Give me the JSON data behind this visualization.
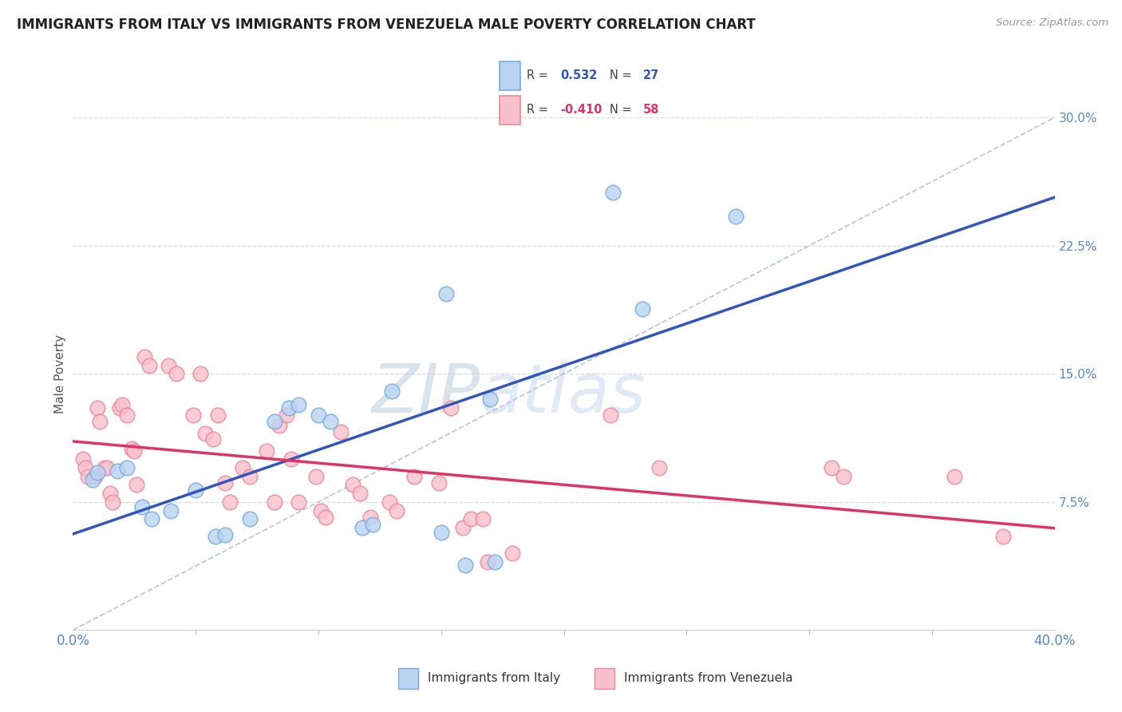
{
  "title": "IMMIGRANTS FROM ITALY VS IMMIGRANTS FROM VENEZUELA MALE POVERTY CORRELATION CHART",
  "source": "Source: ZipAtlas.com",
  "xlabel_italy": "Immigrants from Italy",
  "xlabel_venezuela": "Immigrants from Venezuela",
  "ylabel": "Male Poverty",
  "xlim": [
    0.0,
    0.4
  ],
  "ylim": [
    0.0,
    0.3
  ],
  "xtick_left_label": "0.0%",
  "xtick_right_label": "40.0%",
  "yticks_right": [
    0.075,
    0.15,
    0.225,
    0.3
  ],
  "ytick_labels_right": [
    "7.5%",
    "15.0%",
    "22.5%",
    "30.0%"
  ],
  "italy_R": "0.532",
  "italy_N": "27",
  "venezuela_R": "-0.410",
  "venezuela_N": "58",
  "italy_face_color": "#B8D4F0",
  "italy_edge_color": "#7AAADE",
  "venezuela_face_color": "#F8C0CC",
  "venezuela_edge_color": "#EE8899",
  "italy_line_color": "#3355BB",
  "venezuela_line_color": "#DD3366",
  "ref_line_color": "#C0C8D8",
  "grid_color": "#D8DCE8",
  "background_color": "#FFFFFF",
  "watermark_text": "ZIPatlas",
  "watermark_color": "#C8D8EE",
  "italy_x": [
    0.008,
    0.01,
    0.018,
    0.022,
    0.028,
    0.032,
    0.04,
    0.05,
    0.058,
    0.062,
    0.072,
    0.082,
    0.088,
    0.092,
    0.1,
    0.105,
    0.118,
    0.122,
    0.13,
    0.152,
    0.17,
    0.172,
    0.22,
    0.232,
    0.27,
    0.15,
    0.16
  ],
  "italy_y": [
    0.088,
    0.092,
    0.093,
    0.095,
    0.072,
    0.065,
    0.07,
    0.082,
    0.055,
    0.056,
    0.065,
    0.122,
    0.13,
    0.132,
    0.126,
    0.122,
    0.06,
    0.062,
    0.14,
    0.197,
    0.135,
    0.04,
    0.256,
    0.188,
    0.242,
    0.057,
    0.038
  ],
  "venezuela_x": [
    0.004,
    0.005,
    0.006,
    0.009,
    0.01,
    0.011,
    0.013,
    0.014,
    0.015,
    0.016,
    0.019,
    0.02,
    0.022,
    0.024,
    0.025,
    0.026,
    0.029,
    0.031,
    0.039,
    0.042,
    0.049,
    0.052,
    0.054,
    0.057,
    0.059,
    0.062,
    0.064,
    0.069,
    0.072,
    0.079,
    0.082,
    0.084,
    0.087,
    0.089,
    0.092,
    0.099,
    0.101,
    0.103,
    0.109,
    0.114,
    0.117,
    0.121,
    0.129,
    0.132,
    0.139,
    0.149,
    0.154,
    0.159,
    0.162,
    0.167,
    0.169,
    0.179,
    0.219,
    0.239,
    0.309,
    0.314,
    0.359,
    0.379
  ],
  "venezuela_y": [
    0.1,
    0.095,
    0.09,
    0.09,
    0.13,
    0.122,
    0.095,
    0.095,
    0.08,
    0.075,
    0.13,
    0.132,
    0.126,
    0.106,
    0.105,
    0.085,
    0.16,
    0.155,
    0.155,
    0.15,
    0.126,
    0.15,
    0.115,
    0.112,
    0.126,
    0.086,
    0.075,
    0.095,
    0.09,
    0.105,
    0.075,
    0.12,
    0.126,
    0.1,
    0.075,
    0.09,
    0.07,
    0.066,
    0.116,
    0.085,
    0.08,
    0.066,
    0.075,
    0.07,
    0.09,
    0.086,
    0.13,
    0.06,
    0.065,
    0.065,
    0.04,
    0.045,
    0.126,
    0.095,
    0.095,
    0.09,
    0.09,
    0.055
  ],
  "legend_italy_R_color": "#3355BB",
  "legend_italy_N_color": "#3355BB",
  "legend_venezuela_R_color": "#DD3366",
  "legend_venezuela_N_color": "#DD3366"
}
